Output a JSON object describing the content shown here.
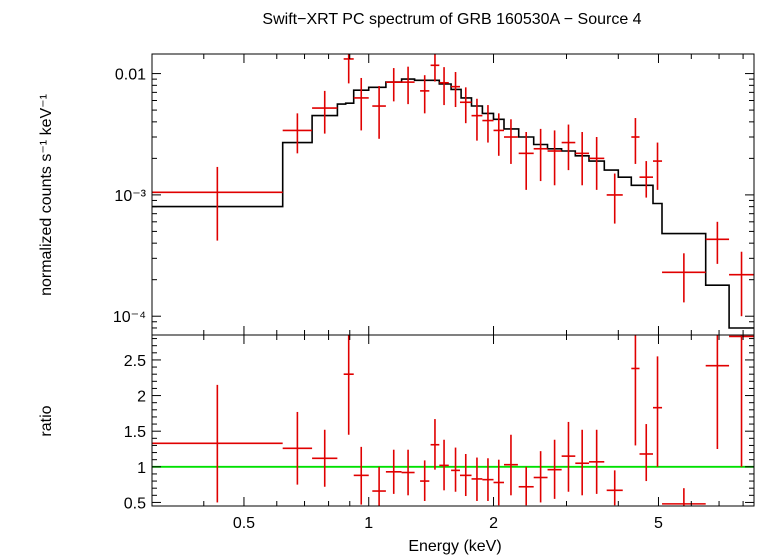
{
  "chart_data": [
    {
      "type": "scatter",
      "panel": "top",
      "title": "Swift−XRT PC spectrum of GRB 160530A − Source 4",
      "xlabel": "",
      "ylabel": "normalized counts s⁻¹ keV⁻¹",
      "xscale": "log",
      "yscale": "log",
      "xlim": [
        0.3,
        8.5
      ],
      "ylim": [
        7e-05,
        0.0145
      ],
      "yticks": [
        {
          "value": 0.01,
          "label": "0.01"
        },
        {
          "value": 0.001,
          "label": "10⁻³"
        },
        {
          "value": 0.0001,
          "label": "10⁻⁴"
        }
      ],
      "series": [
        {
          "name": "data",
          "color": "#e00000",
          "points": [
            {
              "x0": 0.3,
              "x1": 0.62,
              "y": 0.00105,
              "ylo": 0.00042,
              "yhi": 0.0017
            },
            {
              "x0": 0.62,
              "x1": 0.73,
              "y": 0.0034,
              "ylo": 0.0022,
              "yhi": 0.0047
            },
            {
              "x0": 0.73,
              "x1": 0.84,
              "y": 0.0052,
              "ylo": 0.0032,
              "yhi": 0.0072
            },
            {
              "x0": 0.87,
              "x1": 0.92,
              "y": 0.0132,
              "ylo": 0.0083,
              "yhi": 0.0185
            },
            {
              "x0": 0.92,
              "x1": 1.0,
              "y": 0.0063,
              "ylo": 0.0034,
              "yhi": 0.0092
            },
            {
              "x0": 1.02,
              "x1": 1.1,
              "y": 0.0054,
              "ylo": 0.0029,
              "yhi": 0.0079
            },
            {
              "x0": 1.1,
              "x1": 1.2,
              "y": 0.0085,
              "ylo": 0.0059,
              "yhi": 0.0111
            },
            {
              "x0": 1.2,
              "x1": 1.29,
              "y": 0.0085,
              "ylo": 0.0056,
              "yhi": 0.0114
            },
            {
              "x0": 1.33,
              "x1": 1.4,
              "y": 0.0072,
              "ylo": 0.0047,
              "yhi": 0.0097
            },
            {
              "x0": 1.41,
              "x1": 1.48,
              "y": 0.0117,
              "ylo": 0.0086,
              "yhi": 0.015
            },
            {
              "x0": 1.48,
              "x1": 1.56,
              "y": 0.0084,
              "ylo": 0.0055,
              "yhi": 0.0113
            },
            {
              "x0": 1.58,
              "x1": 1.66,
              "y": 0.0078,
              "ylo": 0.0053,
              "yhi": 0.0103
            },
            {
              "x0": 1.66,
              "x1": 1.77,
              "y": 0.0058,
              "ylo": 0.0039,
              "yhi": 0.0077
            },
            {
              "x0": 1.77,
              "x1": 1.88,
              "y": 0.0045,
              "ylo": 0.0028,
              "yhi": 0.0062
            },
            {
              "x0": 1.88,
              "x1": 2.0,
              "y": 0.0041,
              "ylo": 0.0027,
              "yhi": 0.0055
            },
            {
              "x0": 2.0,
              "x1": 2.12,
              "y": 0.0034,
              "ylo": 0.0021,
              "yhi": 0.0047
            },
            {
              "x0": 2.12,
              "x1": 2.29,
              "y": 0.003,
              "ylo": 0.0018,
              "yhi": 0.0042
            },
            {
              "x0": 2.3,
              "x1": 2.5,
              "y": 0.0022,
              "ylo": 0.0011,
              "yhi": 0.0033
            },
            {
              "x0": 2.5,
              "x1": 2.7,
              "y": 0.0024,
              "ylo": 0.0013,
              "yhi": 0.0035
            },
            {
              "x0": 2.7,
              "x1": 2.92,
              "y": 0.0023,
              "ylo": 0.0012,
              "yhi": 0.0034
            },
            {
              "x0": 2.92,
              "x1": 3.15,
              "y": 0.0027,
              "ylo": 0.0016,
              "yhi": 0.0038
            },
            {
              "x0": 3.15,
              "x1": 3.4,
              "y": 0.0022,
              "ylo": 0.0012,
              "yhi": 0.0033
            },
            {
              "x0": 3.4,
              "x1": 3.7,
              "y": 0.002,
              "ylo": 0.0011,
              "yhi": 0.003
            },
            {
              "x0": 3.75,
              "x1": 4.1,
              "y": 0.001,
              "ylo": 0.00058,
              "yhi": 0.0015
            },
            {
              "x0": 4.3,
              "x1": 4.5,
              "y": 0.003,
              "ylo": 0.0018,
              "yhi": 0.0043
            },
            {
              "x0": 4.5,
              "x1": 4.85,
              "y": 0.0014,
              "ylo": 0.00095,
              "yhi": 0.0019
            },
            {
              "x0": 4.85,
              "x1": 5.1,
              "y": 0.0019,
              "ylo": 0.0011,
              "yhi": 0.0027
            },
            {
              "x0": 5.1,
              "x1": 6.5,
              "y": 0.00023,
              "ylo": 0.00013,
              "yhi": 0.00033
            },
            {
              "x0": 6.5,
              "x1": 7.4,
              "y": 0.00043,
              "ylo": 0.00027,
              "yhi": 0.0006
            },
            {
              "x0": 7.4,
              "x1": 8.5,
              "y": 0.00022,
              "ylo": 0.0001,
              "yhi": 0.00034
            }
          ]
        },
        {
          "name": "model",
          "color": "#000000",
          "steps": [
            {
              "x0": 0.3,
              "x1": 0.62,
              "y": 0.0008
            },
            {
              "x0": 0.62,
              "x1": 0.73,
              "y": 0.0027
            },
            {
              "x0": 0.73,
              "x1": 0.84,
              "y": 0.0045
            },
            {
              "x0": 0.84,
              "x1": 0.88,
              "y": 0.0056
            },
            {
              "x0": 0.88,
              "x1": 0.92,
              "y": 0.0057
            },
            {
              "x0": 0.92,
              "x1": 1.0,
              "y": 0.0073
            },
            {
              "x0": 1.0,
              "x1": 1.1,
              "y": 0.0077
            },
            {
              "x0": 1.1,
              "x1": 1.2,
              "y": 0.0085
            },
            {
              "x0": 1.2,
              "x1": 1.29,
              "y": 0.009
            },
            {
              "x0": 1.29,
              "x1": 1.38,
              "y": 0.0088
            },
            {
              "x0": 1.38,
              "x1": 1.48,
              "y": 0.0088
            },
            {
              "x0": 1.48,
              "x1": 1.58,
              "y": 0.0082
            },
            {
              "x0": 1.58,
              "x1": 1.67,
              "y": 0.0074
            },
            {
              "x0": 1.67,
              "x1": 1.77,
              "y": 0.0063
            },
            {
              "x0": 1.77,
              "x1": 1.88,
              "y": 0.0054
            },
            {
              "x0": 1.88,
              "x1": 2.0,
              "y": 0.0047
            },
            {
              "x0": 2.0,
              "x1": 2.12,
              "y": 0.0042
            },
            {
              "x0": 2.12,
              "x1": 2.3,
              "y": 0.0035
            },
            {
              "x0": 2.3,
              "x1": 2.5,
              "y": 0.003
            },
            {
              "x0": 2.5,
              "x1": 2.7,
              "y": 0.0026
            },
            {
              "x0": 2.7,
              "x1": 2.92,
              "y": 0.0024
            },
            {
              "x0": 2.92,
              "x1": 3.15,
              "y": 0.0023
            },
            {
              "x0": 3.15,
              "x1": 3.4,
              "y": 0.0021
            },
            {
              "x0": 3.4,
              "x1": 3.7,
              "y": 0.0019
            },
            {
              "x0": 3.7,
              "x1": 4.0,
              "y": 0.0016
            },
            {
              "x0": 4.0,
              "x1": 4.3,
              "y": 0.0014
            },
            {
              "x0": 4.3,
              "x1": 4.85,
              "y": 0.0012
            },
            {
              "x0": 4.85,
              "x1": 5.1,
              "y": 0.00085
            },
            {
              "x0": 5.1,
              "x1": 6.5,
              "y": 0.00048
            },
            {
              "x0": 6.5,
              "x1": 7.4,
              "y": 0.00018
            },
            {
              "x0": 7.4,
              "x1": 8.5,
              "y": 8e-05
            }
          ]
        }
      ]
    },
    {
      "type": "scatter",
      "panel": "bottom",
      "xlabel": "Energy (keV)",
      "ylabel": "ratio",
      "xscale": "log",
      "yscale": "linear",
      "xlim": [
        0.3,
        8.5
      ],
      "ylim": [
        0.45,
        2.85
      ],
      "xticks": [
        {
          "value": 0.5,
          "label": "0.5"
        },
        {
          "value": 1,
          "label": "1"
        },
        {
          "value": 2,
          "label": "2"
        },
        {
          "value": 5,
          "label": "5"
        }
      ],
      "yticks": [
        {
          "value": 0.5,
          "label": "0.5"
        },
        {
          "value": 1,
          "label": "1"
        },
        {
          "value": 1.5,
          "label": "1.5"
        },
        {
          "value": 2,
          "label": "2"
        },
        {
          "value": 2.5,
          "label": "2.5"
        }
      ],
      "reference_line": {
        "y": 1,
        "color": "#00e000"
      },
      "series": [
        {
          "name": "ratio",
          "color": "#e00000",
          "points": [
            {
              "x0": 0.3,
              "x1": 0.62,
              "y": 1.33,
              "ylo": 0.5,
              "yhi": 2.15
            },
            {
              "x0": 0.62,
              "x1": 0.73,
              "y": 1.26,
              "ylo": 0.75,
              "yhi": 1.77
            },
            {
              "x0": 0.73,
              "x1": 0.84,
              "y": 1.12,
              "ylo": 0.72,
              "yhi": 1.52
            },
            {
              "x0": 0.87,
              "x1": 0.92,
              "y": 2.3,
              "ylo": 1.45,
              "yhi": 2.85
            },
            {
              "x0": 0.92,
              "x1": 1.0,
              "y": 0.88,
              "ylo": 0.47,
              "yhi": 1.28
            },
            {
              "x0": 1.02,
              "x1": 1.1,
              "y": 0.66,
              "ylo": 0.45,
              "yhi": 1.0
            },
            {
              "x0": 1.1,
              "x1": 1.2,
              "y": 0.93,
              "ylo": 0.62,
              "yhi": 1.24
            },
            {
              "x0": 1.2,
              "x1": 1.29,
              "y": 0.92,
              "ylo": 0.6,
              "yhi": 1.24
            },
            {
              "x0": 1.33,
              "x1": 1.4,
              "y": 0.8,
              "ylo": 0.52,
              "yhi": 1.09
            },
            {
              "x0": 1.41,
              "x1": 1.48,
              "y": 1.31,
              "ylo": 0.96,
              "yhi": 1.67
            },
            {
              "x0": 1.48,
              "x1": 1.56,
              "y": 1.02,
              "ylo": 0.67,
              "yhi": 1.38
            },
            {
              "x0": 1.58,
              "x1": 1.66,
              "y": 0.95,
              "ylo": 0.65,
              "yhi": 1.27
            },
            {
              "x0": 1.66,
              "x1": 1.77,
              "y": 0.88,
              "ylo": 0.59,
              "yhi": 1.18
            },
            {
              "x0": 1.77,
              "x1": 1.88,
              "y": 0.83,
              "ylo": 0.52,
              "yhi": 1.13
            },
            {
              "x0": 1.88,
              "x1": 2.0,
              "y": 0.82,
              "ylo": 0.52,
              "yhi": 1.12
            },
            {
              "x0": 2.0,
              "x1": 2.12,
              "y": 0.78,
              "ylo": 0.46,
              "yhi": 1.1
            },
            {
              "x0": 2.12,
              "x1": 2.29,
              "y": 1.03,
              "ylo": 0.6,
              "yhi": 1.45
            },
            {
              "x0": 2.3,
              "x1": 2.5,
              "y": 0.72,
              "ylo": 0.46,
              "yhi": 1.0
            },
            {
              "x0": 2.5,
              "x1": 2.7,
              "y": 0.85,
              "ylo": 0.5,
              "yhi": 1.22
            },
            {
              "x0": 2.7,
              "x1": 2.92,
              "y": 0.96,
              "ylo": 0.55,
              "yhi": 1.38
            },
            {
              "x0": 2.92,
              "x1": 3.15,
              "y": 1.15,
              "ylo": 0.65,
              "yhi": 1.63
            },
            {
              "x0": 3.15,
              "x1": 3.4,
              "y": 1.05,
              "ylo": 0.6,
              "yhi": 1.52
            },
            {
              "x0": 3.4,
              "x1": 3.7,
              "y": 1.07,
              "ylo": 0.62,
              "yhi": 1.52
            },
            {
              "x0": 3.75,
              "x1": 4.1,
              "y": 0.67,
              "ylo": 0.46,
              "yhi": 0.95
            },
            {
              "x0": 4.3,
              "x1": 4.5,
              "y": 2.38,
              "ylo": 1.3,
              "yhi": 2.85
            },
            {
              "x0": 4.5,
              "x1": 4.85,
              "y": 1.18,
              "ylo": 0.8,
              "yhi": 1.6
            },
            {
              "x0": 4.85,
              "x1": 5.1,
              "y": 1.83,
              "ylo": 1.0,
              "yhi": 2.55
            },
            {
              "x0": 5.1,
              "x1": 6.5,
              "y": 0.48,
              "ylo": 0.45,
              "yhi": 0.7
            },
            {
              "x0": 6.5,
              "x1": 7.4,
              "y": 2.42,
              "ylo": 1.25,
              "yhi": 2.85
            },
            {
              "x0": 7.4,
              "x1": 8.5,
              "y": 2.83,
              "ylo": 1.0,
              "yhi": 2.85
            }
          ]
        }
      ]
    }
  ]
}
